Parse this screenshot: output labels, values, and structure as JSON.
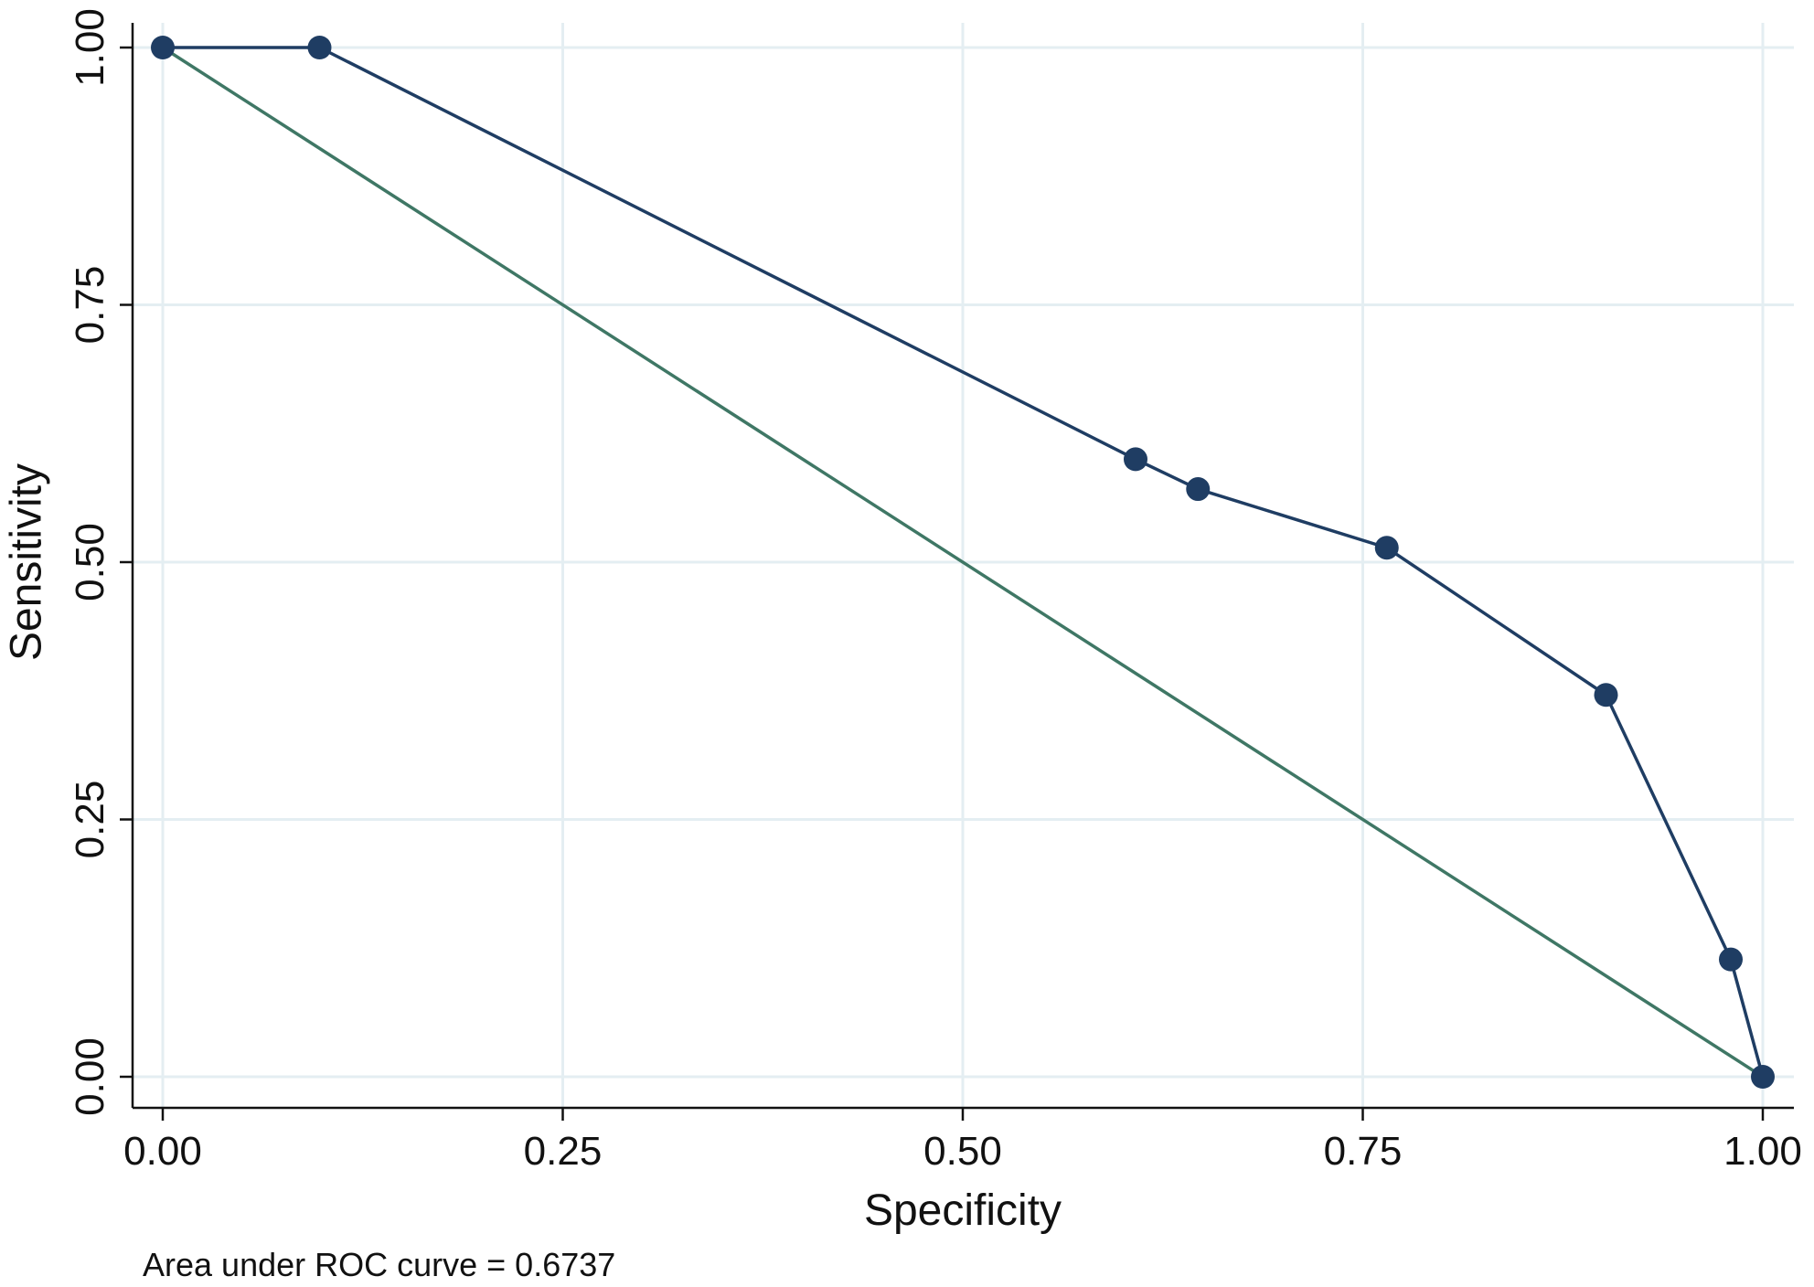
{
  "chart_data": {
    "type": "line",
    "title": "",
    "xlabel": "Specificity",
    "ylabel": "Sensitivity",
    "xlim": [
      0,
      1
    ],
    "ylim": [
      0,
      1
    ],
    "grid": true,
    "x_ticks": [
      "0.00",
      "0.25",
      "0.50",
      "0.75",
      "1.00"
    ],
    "y_ticks": [
      "0.00",
      "0.25",
      "0.50",
      "0.75",
      "1.00"
    ],
    "series": [
      {
        "color": "#1f3d63",
        "markers": true,
        "points": [
          {
            "x": 0.0,
            "y": 1.0
          },
          {
            "x": 0.098,
            "y": 1.0
          },
          {
            "x": 0.608,
            "y": 0.6
          },
          {
            "x": 0.647,
            "y": 0.571
          },
          {
            "x": 0.765,
            "y": 0.514
          },
          {
            "x": 0.902,
            "y": 0.371
          },
          {
            "x": 0.98,
            "y": 0.114
          },
          {
            "x": 1.0,
            "y": 0.0
          }
        ]
      },
      {
        "color": "#3f7765",
        "markers": false,
        "points": [
          {
            "x": 0.0,
            "y": 1.0
          },
          {
            "x": 1.0,
            "y": 0.0
          }
        ]
      }
    ],
    "annotation": "Area under ROC curve = 0.6737"
  }
}
